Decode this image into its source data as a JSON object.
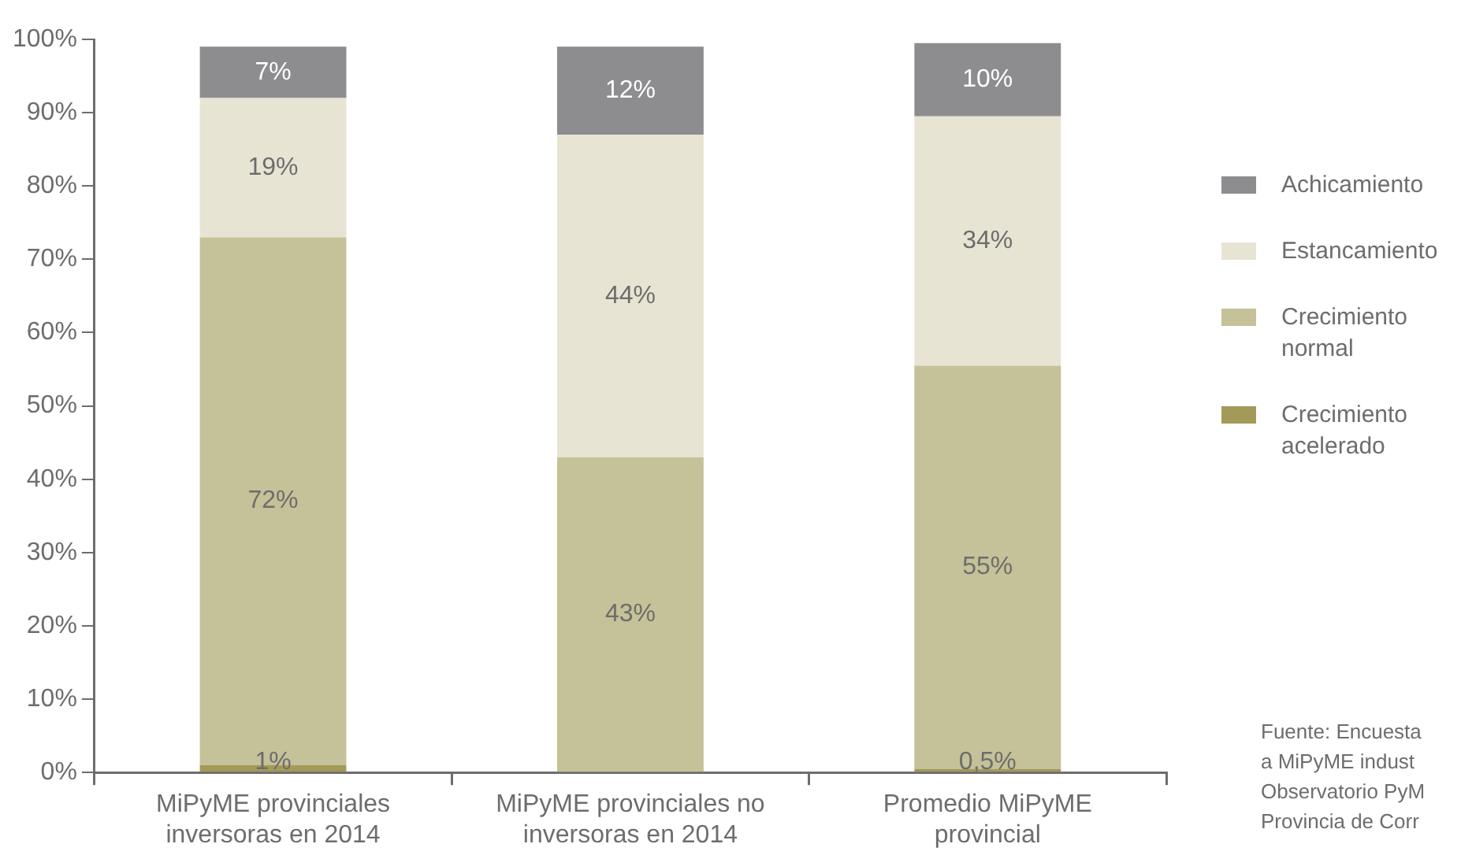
{
  "chart_data": {
    "type": "bar",
    "stacked": true,
    "legend": "right",
    "categories": [
      "MiPyME provinciales\ninversoras en 2014",
      "MiPyME provinciales no\ninversoras en 2014",
      "Promedio MiPyME\nprovincial"
    ],
    "series": [
      {
        "name": "Crecimiento\nacelerado",
        "color": "#a39a5a",
        "values": [
          1,
          0,
          0.5
        ],
        "value_labels": [
          "1%",
          null,
          "0,5%"
        ]
      },
      {
        "name": "Crecimiento\nnormal",
        "color": "#c5c198",
        "values": [
          72,
          43,
          55
        ],
        "value_labels": [
          "72%",
          "43%",
          "55%"
        ]
      },
      {
        "name": "Estancamiento",
        "color": "#e8e4d4",
        "values": [
          19,
          44,
          34
        ],
        "value_labels": [
          "19%",
          "44%",
          "34%"
        ]
      },
      {
        "name": "Achicamiento",
        "color": "#8d8d8f",
        "values": [
          7,
          12,
          10
        ],
        "value_labels": [
          "7%",
          "12%",
          "10%"
        ]
      }
    ],
    "ylim": [
      0,
      100
    ],
    "yticks": [
      {
        "value": 0,
        "label": "0%"
      },
      {
        "value": 10,
        "label": "10%"
      },
      {
        "value": 20,
        "label": "20%"
      },
      {
        "value": 30,
        "label": "30%"
      },
      {
        "value": 40,
        "label": "40%"
      },
      {
        "value": 50,
        "label": "50%"
      },
      {
        "value": 60,
        "label": "60%"
      },
      {
        "value": 70,
        "label": "70%"
      },
      {
        "value": 80,
        "label": "80%"
      },
      {
        "value": 90,
        "label": "90%"
      },
      {
        "value": 100,
        "label": "100%"
      }
    ],
    "annotations": [
      "Fuente: Encuesta\na MiPyME indust\nObservatorio PyM\nProvincia de Corr"
    ]
  }
}
